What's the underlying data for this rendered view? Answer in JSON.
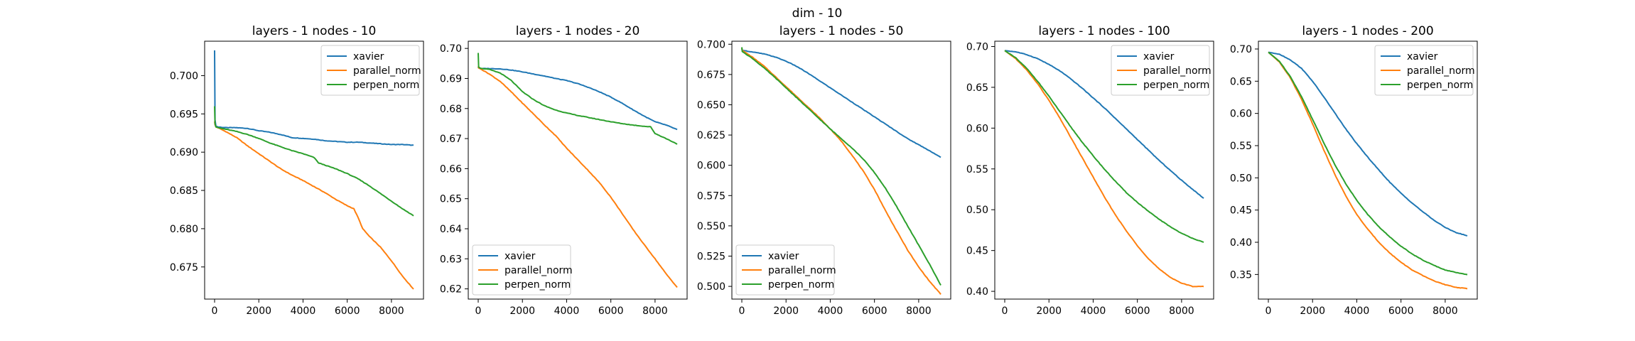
{
  "figure": {
    "suptitle": "dim - 10"
  },
  "chart_data": [
    {
      "type": "line",
      "title": "layers - 1 nodes - 10",
      "xlabel": "",
      "ylabel": "",
      "xlim": [
        -450,
        9450
      ],
      "ylim": [
        0.6708,
        0.7045
      ],
      "xticks": [
        0,
        2000,
        4000,
        6000,
        8000
      ],
      "yticks": [
        0.675,
        0.68,
        0.685,
        0.69,
        0.695,
        0.7
      ],
      "ytick_labels": [
        "0.675",
        "0.680",
        "0.685",
        "0.690",
        "0.695",
        "0.700"
      ],
      "legend": "upper right",
      "series": [
        {
          "name": "xavier",
          "color": "#1f77b4",
          "x": [
            0,
            20,
            60,
            150,
            500,
            1000,
            1500,
            2000,
            2500,
            3000,
            3500,
            4000,
            4500,
            5000,
            5500,
            6000,
            6500,
            7000,
            7500,
            8000,
            8500,
            9000
          ],
          "y": [
            0.7033,
            0.6942,
            0.6934,
            0.6933,
            0.6932,
            0.6932,
            0.6931,
            0.6928,
            0.6926,
            0.6923,
            0.6919,
            0.6918,
            0.6917,
            0.6915,
            0.6914,
            0.6913,
            0.6913,
            0.6912,
            0.6911,
            0.691,
            0.691,
            0.6909
          ]
        },
        {
          "name": "parallel_norm",
          "color": "#ff7f0e",
          "x": [
            0,
            20,
            60,
            150,
            500,
            1000,
            1500,
            2000,
            2500,
            3000,
            3500,
            4000,
            4500,
            5000,
            5500,
            6000,
            6300,
            6500,
            6700,
            7000,
            7500,
            8000,
            8500,
            9000
          ],
          "y": [
            0.694,
            0.6936,
            0.6933,
            0.6932,
            0.6927,
            0.6919,
            0.6908,
            0.6898,
            0.6888,
            0.6878,
            0.687,
            0.6863,
            0.6855,
            0.6847,
            0.6838,
            0.683,
            0.6826,
            0.6814,
            0.68,
            0.679,
            0.6776,
            0.6758,
            0.6738,
            0.6721
          ]
        },
        {
          "name": "perpen_norm",
          "color": "#2ca02c",
          "x": [
            0,
            20,
            60,
            150,
            500,
            1000,
            1500,
            2000,
            2500,
            3000,
            3500,
            4000,
            4500,
            4700,
            5000,
            5500,
            6000,
            6500,
            7000,
            7500,
            8000,
            8500,
            9000
          ],
          "y": [
            0.696,
            0.6937,
            0.6933,
            0.6932,
            0.693,
            0.6927,
            0.6923,
            0.6918,
            0.6912,
            0.6907,
            0.6902,
            0.6898,
            0.6893,
            0.6886,
            0.6883,
            0.6878,
            0.6872,
            0.6865,
            0.6856,
            0.6846,
            0.6836,
            0.6826,
            0.6817
          ]
        }
      ]
    },
    {
      "type": "line",
      "title": "layers - 1 nodes - 20",
      "xlabel": "",
      "ylabel": "",
      "xlim": [
        -450,
        9450
      ],
      "ylim": [
        0.6166,
        0.7024
      ],
      "xticks": [
        0,
        2000,
        4000,
        6000,
        8000
      ],
      "yticks": [
        0.62,
        0.63,
        0.64,
        0.65,
        0.66,
        0.67,
        0.68,
        0.69,
        0.7
      ],
      "ytick_labels": [
        "0.62",
        "0.63",
        "0.64",
        "0.65",
        "0.66",
        "0.67",
        "0.68",
        "0.69",
        "0.70"
      ],
      "legend": "lower left",
      "series": [
        {
          "name": "xavier",
          "color": "#1f77b4",
          "x": [
            0,
            20,
            100,
            500,
            1000,
            1500,
            2000,
            2500,
            3000,
            3500,
            4000,
            4500,
            5000,
            5500,
            6000,
            6500,
            7000,
            7500,
            8000,
            8500,
            9000
          ],
          "y": [
            0.6938,
            0.6935,
            0.6933,
            0.6933,
            0.6932,
            0.6928,
            0.6922,
            0.6915,
            0.6908,
            0.69,
            0.6893,
            0.6883,
            0.687,
            0.6855,
            0.6838,
            0.6818,
            0.6796,
            0.6775,
            0.6756,
            0.6745,
            0.673
          ]
        },
        {
          "name": "parallel_norm",
          "color": "#ff7f0e",
          "x": [
            0,
            20,
            100,
            500,
            1000,
            1500,
            2000,
            2500,
            3000,
            3500,
            4000,
            4500,
            5000,
            5500,
            6000,
            6500,
            7000,
            7500,
            8000,
            8500,
            9000
          ],
          "y": [
            0.694,
            0.6935,
            0.6932,
            0.6915,
            0.689,
            0.6855,
            0.6818,
            0.6782,
            0.6745,
            0.671,
            0.6668,
            0.663,
            0.6592,
            0.6552,
            0.6505,
            0.6452,
            0.6398,
            0.6348,
            0.63,
            0.625,
            0.6205
          ]
        },
        {
          "name": "perpen_norm",
          "color": "#2ca02c",
          "x": [
            0,
            20,
            100,
            500,
            1000,
            1500,
            2000,
            2500,
            3000,
            3500,
            4000,
            4500,
            5000,
            5500,
            6000,
            6500,
            7000,
            7500,
            7800,
            8000,
            8500,
            9000
          ],
          "y": [
            0.6985,
            0.6938,
            0.6934,
            0.693,
            0.6918,
            0.6893,
            0.6856,
            0.683,
            0.6809,
            0.6795,
            0.6785,
            0.6777,
            0.677,
            0.6763,
            0.6756,
            0.675,
            0.6745,
            0.6741,
            0.6739,
            0.6717,
            0.67,
            0.6682
          ]
        }
      ]
    },
    {
      "type": "line",
      "title": "layers - 1 nodes - 50",
      "xlabel": "",
      "ylabel": "",
      "xlim": [
        -450,
        9450
      ],
      "ylim": [
        0.4895,
        0.7025
      ],
      "xticks": [
        0,
        2000,
        4000,
        6000,
        8000
      ],
      "yticks": [
        0.5,
        0.525,
        0.55,
        0.575,
        0.6,
        0.625,
        0.65,
        0.675,
        0.7
      ],
      "ytick_labels": [
        "0.500",
        "0.525",
        "0.550",
        "0.575",
        "0.600",
        "0.625",
        "0.650",
        "0.675",
        "0.700"
      ],
      "legend": "lower left",
      "series": [
        {
          "name": "xavier",
          "color": "#1f77b4",
          "x": [
            0,
            20,
            500,
            1000,
            1500,
            2000,
            2500,
            3000,
            3500,
            4000,
            4500,
            5000,
            5500,
            6000,
            6500,
            7000,
            7500,
            8000,
            8500,
            9000
          ],
          "y": [
            0.6965,
            0.695,
            0.6935,
            0.692,
            0.6895,
            0.686,
            0.6815,
            0.676,
            0.67,
            0.664,
            0.658,
            0.652,
            0.646,
            0.64,
            0.634,
            0.628,
            0.622,
            0.617,
            0.612,
            0.6065
          ]
        },
        {
          "name": "parallel_norm",
          "color": "#ff7f0e",
          "x": [
            0,
            20,
            500,
            1000,
            1500,
            2000,
            2500,
            3000,
            3500,
            4000,
            4500,
            5000,
            5500,
            6000,
            6500,
            7000,
            7500,
            8000,
            8500,
            9000
          ],
          "y": [
            0.6965,
            0.695,
            0.689,
            0.682,
            0.6735,
            0.665,
            0.6565,
            0.648,
            0.6395,
            0.63,
            0.62,
            0.608,
            0.595,
            0.58,
            0.5625,
            0.546,
            0.53,
            0.516,
            0.504,
            0.4935
          ]
        },
        {
          "name": "perpen_norm",
          "color": "#2ca02c",
          "x": [
            0,
            20,
            500,
            1000,
            1500,
            2000,
            2500,
            3000,
            3500,
            4000,
            4500,
            5000,
            5500,
            6000,
            6500,
            7000,
            7500,
            8000,
            8500,
            9000
          ],
          "y": [
            0.6975,
            0.694,
            0.688,
            0.6805,
            0.6725,
            0.664,
            0.6555,
            0.647,
            0.6385,
            0.63,
            0.622,
            0.614,
            0.605,
            0.594,
            0.581,
            0.566,
            0.55,
            0.534,
            0.518,
            0.501
          ]
        }
      ]
    },
    {
      "type": "line",
      "title": "layers - 1 nodes - 100",
      "xlabel": "",
      "ylabel": "",
      "xlim": [
        -450,
        9450
      ],
      "ylim": [
        0.3905,
        0.7065
      ],
      "xticks": [
        0,
        2000,
        4000,
        6000,
        8000
      ],
      "yticks": [
        0.4,
        0.45,
        0.5,
        0.55,
        0.6,
        0.65,
        0.7
      ],
      "ytick_labels": [
        "0.40",
        "0.45",
        "0.50",
        "0.55",
        "0.60",
        "0.65",
        "0.70"
      ],
      "legend": "upper right",
      "series": [
        {
          "name": "xavier",
          "color": "#1f77b4",
          "x": [
            0,
            500,
            1000,
            1500,
            2000,
            2500,
            3000,
            3500,
            4000,
            4500,
            5000,
            5500,
            6000,
            6500,
            7000,
            7500,
            8000,
            8500,
            9000
          ],
          "y": [
            0.695,
            0.6935,
            0.69,
            0.685,
            0.678,
            0.67,
            0.66,
            0.649,
            0.637,
            0.625,
            0.612,
            0.599,
            0.586,
            0.573,
            0.56,
            0.548,
            0.536,
            0.525,
            0.514
          ]
        },
        {
          "name": "parallel_norm",
          "color": "#ff7f0e",
          "x": [
            0,
            500,
            1000,
            1500,
            2000,
            2500,
            3000,
            3500,
            4000,
            4500,
            5000,
            5500,
            6000,
            6500,
            7000,
            7500,
            8000,
            8500,
            9000
          ],
          "y": [
            0.695,
            0.685,
            0.671,
            0.654,
            0.634,
            0.612,
            0.588,
            0.564,
            0.54,
            0.516,
            0.494,
            0.474,
            0.456,
            0.44,
            0.427,
            0.417,
            0.41,
            0.406,
            0.406
          ]
        },
        {
          "name": "perpen_norm",
          "color": "#2ca02c",
          "x": [
            0,
            500,
            1000,
            1500,
            2000,
            2500,
            3000,
            3500,
            4000,
            4500,
            5000,
            5500,
            6000,
            6500,
            7000,
            7500,
            8000,
            8500,
            9000
          ],
          "y": [
            0.695,
            0.686,
            0.673,
            0.657,
            0.639,
            0.62,
            0.601,
            0.583,
            0.566,
            0.55,
            0.535,
            0.521,
            0.509,
            0.498,
            0.488,
            0.479,
            0.471,
            0.465,
            0.46
          ]
        }
      ]
    },
    {
      "type": "line",
      "title": "layers - 1 nodes - 200",
      "xlabel": "",
      "ylabel": "",
      "xlim": [
        -450,
        9450
      ],
      "ylim": [
        0.3118,
        0.7121
      ],
      "xticks": [
        0,
        2000,
        4000,
        6000,
        8000
      ],
      "yticks": [
        0.35,
        0.4,
        0.45,
        0.5,
        0.55,
        0.6,
        0.65,
        0.7
      ],
      "ytick_labels": [
        "0.35",
        "0.40",
        "0.45",
        "0.50",
        "0.55",
        "0.60",
        "0.65",
        "0.70"
      ],
      "legend": "upper right",
      "series": [
        {
          "name": "xavier",
          "color": "#1f77b4",
          "x": [
            0,
            500,
            1000,
            1500,
            2000,
            2500,
            3000,
            3500,
            4000,
            4500,
            5000,
            5500,
            6000,
            6500,
            7000,
            7500,
            8000,
            8500,
            9000
          ],
          "y": [
            0.695,
            0.692,
            0.683,
            0.67,
            0.65,
            0.626,
            0.601,
            0.576,
            0.553,
            0.532,
            0.512,
            0.493,
            0.476,
            0.461,
            0.447,
            0.434,
            0.423,
            0.415,
            0.41
          ]
        },
        {
          "name": "parallel_norm",
          "color": "#ff7f0e",
          "x": [
            0,
            500,
            1000,
            1500,
            2000,
            2500,
            3000,
            3500,
            4000,
            4500,
            5000,
            5500,
            6000,
            6500,
            7000,
            7500,
            8000,
            8500,
            9000
          ],
          "y": [
            0.695,
            0.68,
            0.655,
            0.622,
            0.584,
            0.544,
            0.506,
            0.472,
            0.443,
            0.42,
            0.4,
            0.383,
            0.369,
            0.357,
            0.348,
            0.34,
            0.334,
            0.33,
            0.328
          ]
        },
        {
          "name": "perpen_norm",
          "color": "#2ca02c",
          "x": [
            0,
            500,
            1000,
            1500,
            2000,
            2500,
            3000,
            3500,
            4000,
            4500,
            5000,
            5500,
            6000,
            6500,
            7000,
            7500,
            8000,
            8500,
            9000
          ],
          "y": [
            0.695,
            0.681,
            0.657,
            0.626,
            0.591,
            0.555,
            0.521,
            0.491,
            0.465,
            0.443,
            0.424,
            0.408,
            0.394,
            0.382,
            0.372,
            0.364,
            0.357,
            0.353,
            0.35
          ]
        }
      ]
    }
  ]
}
